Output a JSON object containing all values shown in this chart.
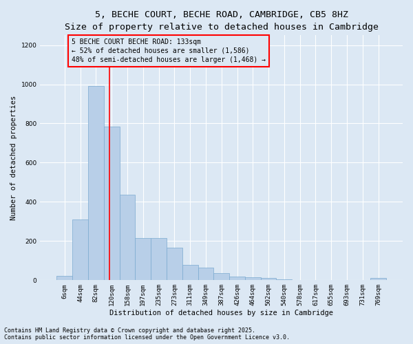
{
  "title_line1": "5, BECHE COURT, BECHE ROAD, CAMBRIDGE, CB5 8HZ",
  "title_line2": "Size of property relative to detached houses in Cambridge",
  "xlabel": "Distribution of detached houses by size in Cambridge",
  "ylabel": "Number of detached properties",
  "categories": [
    "6sqm",
    "44sqm",
    "82sqm",
    "120sqm",
    "158sqm",
    "197sqm",
    "235sqm",
    "273sqm",
    "311sqm",
    "349sqm",
    "387sqm",
    "426sqm",
    "464sqm",
    "502sqm",
    "540sqm",
    "578sqm",
    "617sqm",
    "655sqm",
    "693sqm",
    "731sqm",
    "769sqm"
  ],
  "values": [
    22,
    310,
    990,
    785,
    435,
    215,
    215,
    165,
    80,
    65,
    35,
    18,
    15,
    10,
    5,
    0,
    0,
    0,
    0,
    0,
    10
  ],
  "bar_color": "#b8cfe8",
  "bar_edge_color": "#7aaad0",
  "vline_color": "red",
  "vline_x": 2.85,
  "annotation_text_line1": "5 BECHE COURT BECHE ROAD: 133sqm",
  "annotation_text_line2": "← 52% of detached houses are smaller (1,586)",
  "annotation_text_line3": "48% of semi-detached houses are larger (1,468) →",
  "annotation_box_edgecolor": "red",
  "annotation_box_facecolor": "#dce8f4",
  "ylim": [
    0,
    1250
  ],
  "yticks": [
    0,
    200,
    400,
    600,
    800,
    1000,
    1200
  ],
  "background_color": "#dce8f4",
  "grid_color": "white",
  "footer_line1": "Contains HM Land Registry data © Crown copyright and database right 2025.",
  "footer_line2": "Contains public sector information licensed under the Open Government Licence v3.0.",
  "title_fontsize": 9.5,
  "subtitle_fontsize": 8.5,
  "axis_label_fontsize": 7.5,
  "tick_fontsize": 6.5,
  "annotation_fontsize": 7,
  "footer_fontsize": 6
}
